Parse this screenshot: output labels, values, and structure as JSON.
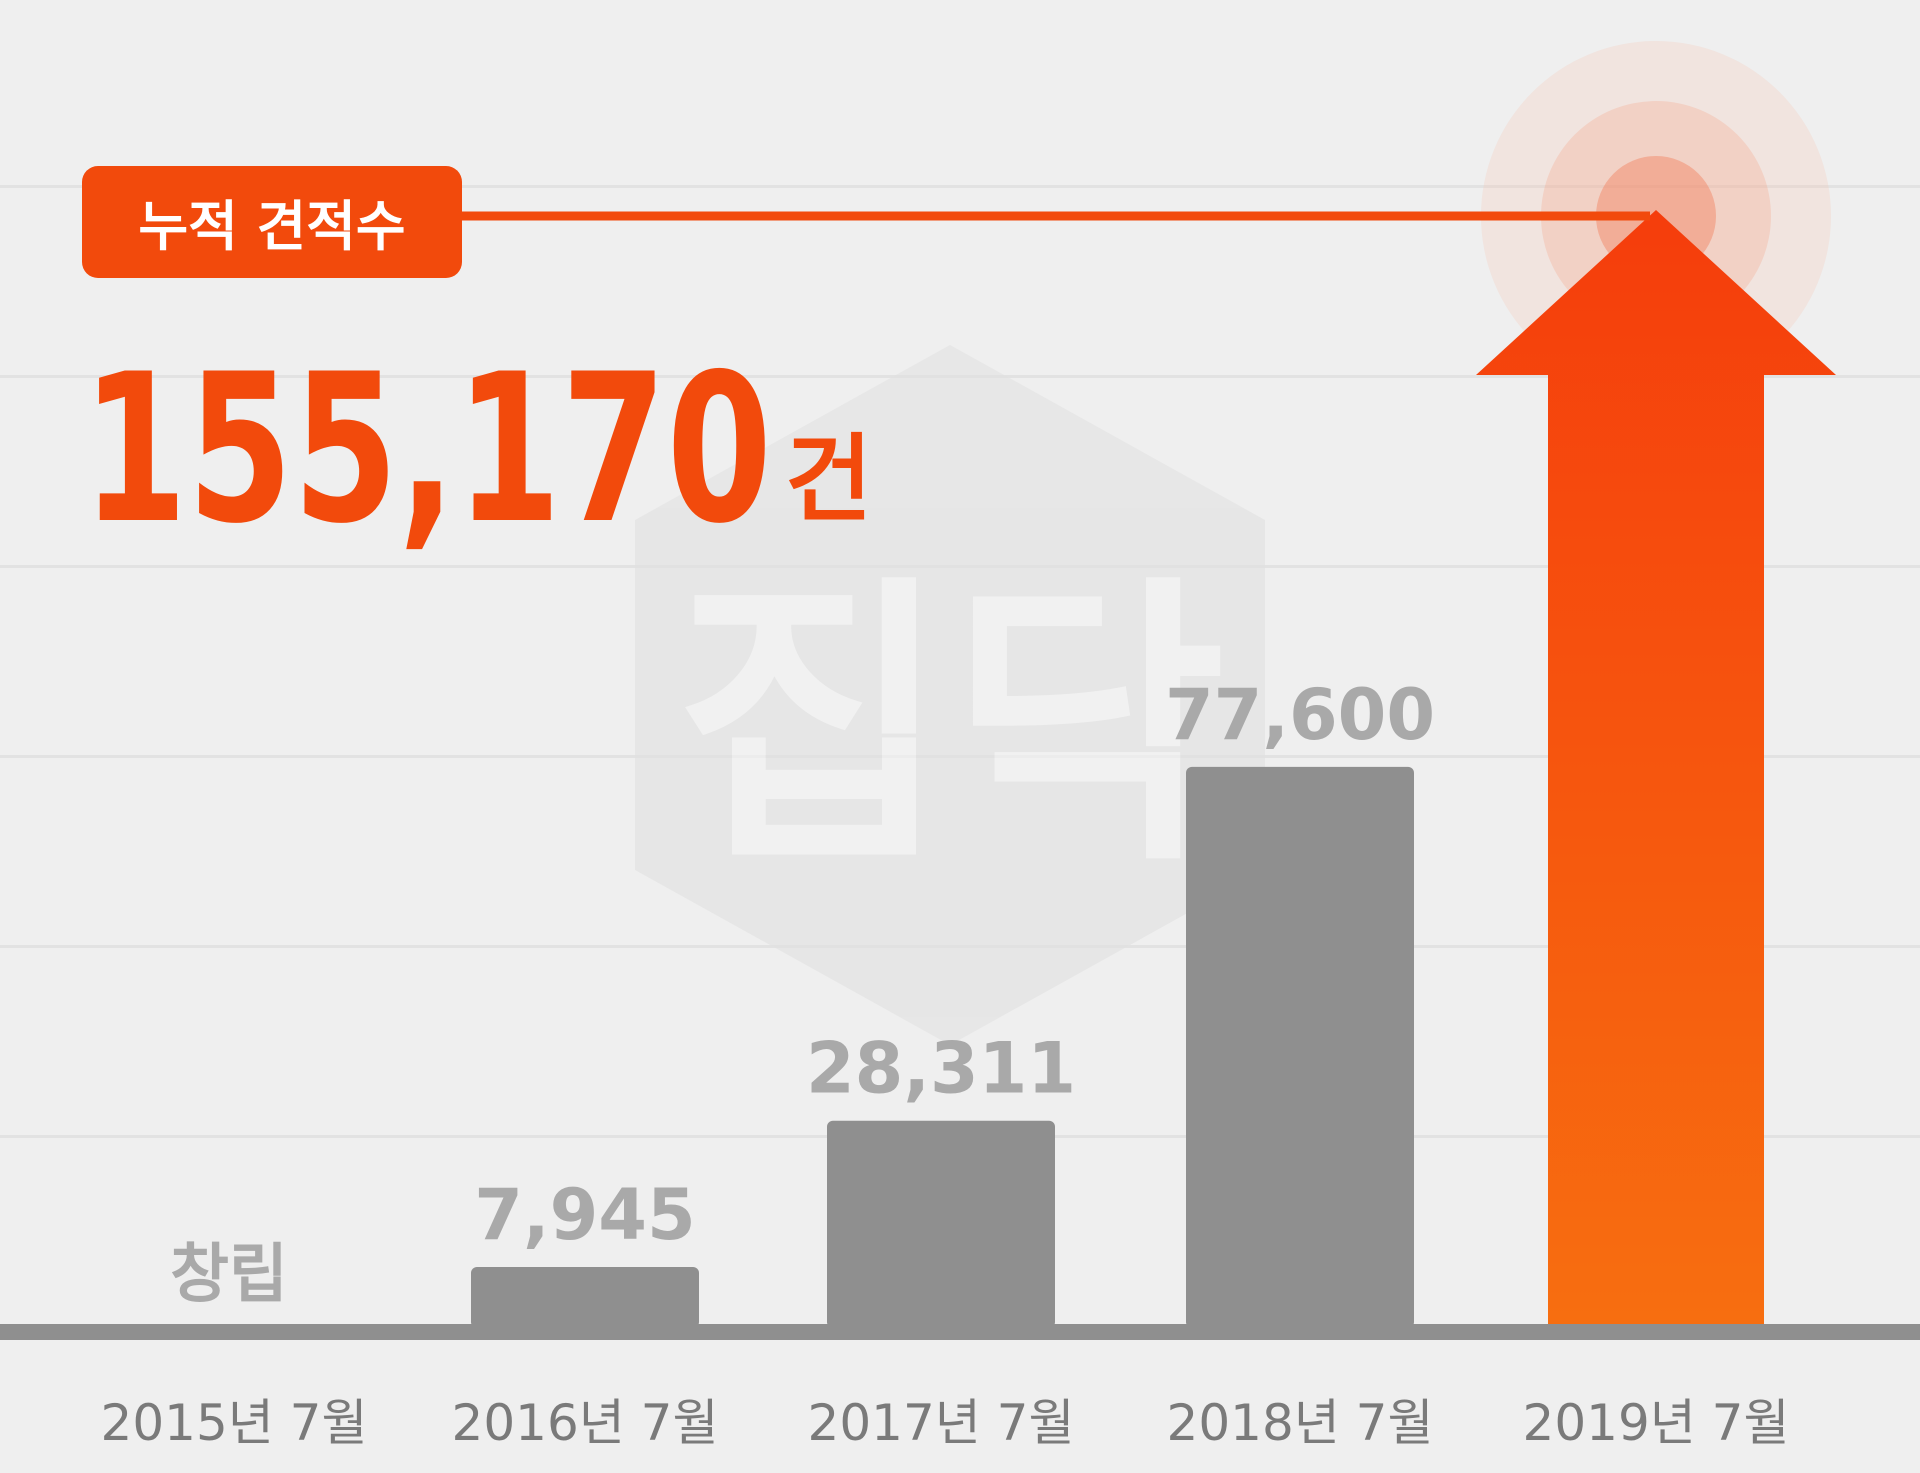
{
  "colors": {
    "accent": "#f24a0c",
    "bar": "#8f8f8f",
    "label_gray": "#a9a9a9",
    "axis_text": "#7a7a7a",
    "background": "#efefef"
  },
  "chart_data": {
    "type": "bar",
    "categories": [
      "2015년 7월",
      "2016년 7월",
      "2017년 7월",
      "2018년 7월",
      "2019년 7월"
    ],
    "values": [
      0,
      7945,
      28311,
      77600,
      155170
    ],
    "data_labels": [
      "창립",
      "7,945",
      "28,311",
      "77,600",
      ""
    ],
    "highlight": {
      "category": "2019년 7월",
      "badge": "누적 견적수",
      "value_text": "155,170",
      "unit": "건",
      "shape": "arrow"
    },
    "ylim": [
      0,
      155170
    ],
    "grid": true,
    "legend": "none"
  },
  "watermark": {
    "text": "집닥"
  }
}
